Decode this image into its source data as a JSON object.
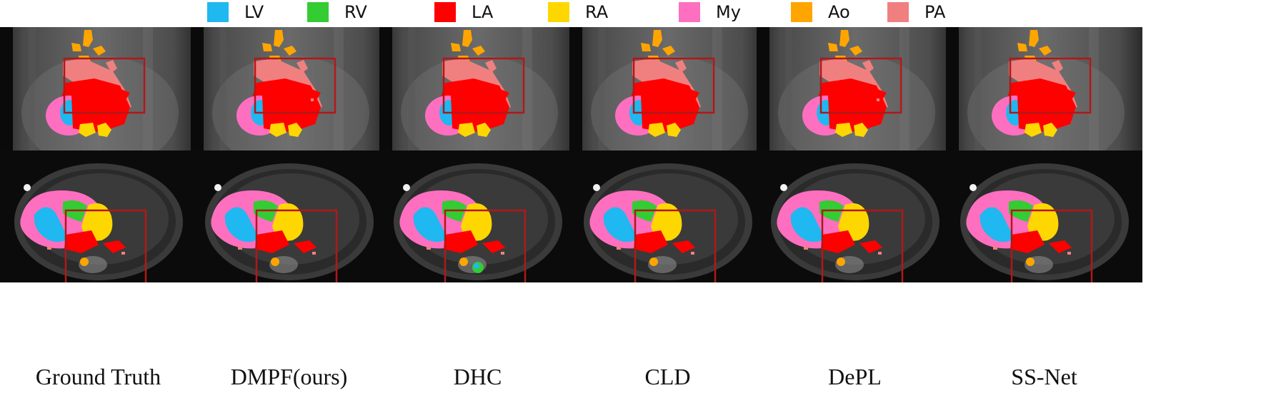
{
  "legend": [
    {
      "label": "LV",
      "color": "#1fb8f0"
    },
    {
      "label": "RV",
      "color": "#33cc33"
    },
    {
      "label": "LA",
      "color": "#ff0000"
    },
    {
      "label": "RA",
      "color": "#ffd700"
    },
    {
      "label": "My",
      "color": "#ff6fc0"
    },
    {
      "label": "Ao",
      "color": "#ffa500"
    },
    {
      "label": "PA",
      "color": "#f08080"
    }
  ],
  "columns": [
    {
      "label": "Ground Truth"
    },
    {
      "label": "DMPF(ours)"
    },
    {
      "label": "DHC"
    },
    {
      "label": "CLD"
    },
    {
      "label": "DePL"
    },
    {
      "label": "SS-Net"
    }
  ],
  "rows": [
    {
      "view": "coronal"
    },
    {
      "view": "axial"
    }
  ],
  "highlight_box_color": "#b01818"
}
